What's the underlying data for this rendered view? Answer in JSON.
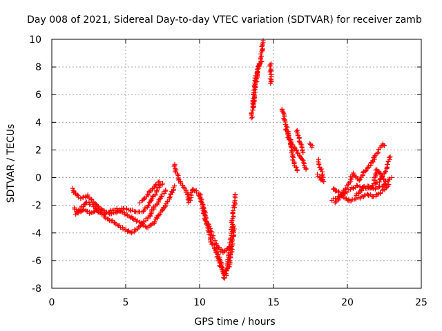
{
  "chart_data": {
    "type": "scatter",
    "title": "Day 008 of 2021, Sidereal Day-to-day VTEC variation (SDTVAR) for receiver zamb",
    "xlabel": "GPS time / hours",
    "ylabel": "SDTVAR / TECUs",
    "xlim": [
      0,
      25
    ],
    "ylim": [
      -8,
      10
    ],
    "xticks": [
      0,
      5,
      10,
      15,
      20,
      25
    ],
    "yticks": [
      -8,
      -6,
      -4,
      -2,
      0,
      2,
      4,
      6,
      8,
      10
    ],
    "grid": true,
    "marker": "+",
    "series": [
      {
        "name": "SDTVAR",
        "color": "#ff0000",
        "segments": [
          [
            [
              1.4,
              -0.8
            ],
            [
              1.6,
              -1.2
            ],
            [
              2.0,
              -1.5
            ],
            [
              2.4,
              -1.3
            ],
            [
              2.8,
              -1.8
            ],
            [
              3.2,
              -2.2
            ],
            [
              3.6,
              -2.5
            ],
            [
              4.0,
              -2.6
            ],
            [
              4.4,
              -2.5
            ],
            [
              4.8,
              -2.2
            ],
            [
              5.2,
              -2.3
            ],
            [
              5.6,
              -2.4
            ],
            [
              6.0,
              -2.5
            ],
            [
              6.4,
              -2.2
            ],
            [
              6.8,
              -1.5
            ],
            [
              7.2,
              -0.8
            ],
            [
              7.5,
              -0.4
            ]
          ],
          [
            [
              1.5,
              -2.2
            ],
            [
              1.8,
              -2.5
            ],
            [
              2.2,
              -2.3
            ],
            [
              2.6,
              -2.6
            ],
            [
              3.0,
              -2.4
            ],
            [
              3.4,
              -2.6
            ],
            [
              3.8,
              -3.0
            ],
            [
              4.2,
              -3.2
            ],
            [
              4.6,
              -3.5
            ],
            [
              5.0,
              -3.8
            ],
            [
              5.4,
              -4.0
            ],
            [
              5.8,
              -3.7
            ],
            [
              6.2,
              -3.2
            ],
            [
              6.6,
              -2.8
            ],
            [
              7.0,
              -2.0
            ],
            [
              7.4,
              -1.4
            ],
            [
              7.7,
              -0.9
            ]
          ],
          [
            [
              1.6,
              -2.6
            ],
            [
              2.0,
              -2.2
            ],
            [
              2.4,
              -1.8
            ],
            [
              2.8,
              -2.0
            ],
            [
              3.2,
              -2.5
            ],
            [
              3.6,
              -2.6
            ],
            [
              4.0,
              -2.4
            ],
            [
              4.4,
              -2.3
            ],
            [
              4.8,
              -2.5
            ],
            [
              5.2,
              -2.8
            ],
            [
              5.6,
              -3.0
            ],
            [
              6.0,
              -3.3
            ],
            [
              6.4,
              -3.6
            ],
            [
              6.8,
              -3.4
            ],
            [
              7.2,
              -2.8
            ],
            [
              7.6,
              -2.2
            ],
            [
              8.0,
              -1.4
            ],
            [
              8.3,
              -0.6
            ]
          ],
          [
            [
              6.0,
              -1.8
            ],
            [
              6.5,
              -1.2
            ],
            [
              7.0,
              -0.6
            ],
            [
              7.3,
              -0.3
            ]
          ],
          [
            [
              8.3,
              1.0
            ],
            [
              8.4,
              0.4
            ],
            [
              8.6,
              -0.2
            ],
            [
              8.8,
              -0.5
            ],
            [
              9.0,
              -0.8
            ],
            [
              9.2,
              -1.2
            ],
            [
              9.3,
              -1.8
            ],
            [
              9.5,
              -0.8
            ],
            [
              9.8,
              -1.0
            ],
            [
              10.0,
              -1.5
            ],
            [
              10.2,
              -2.0
            ],
            [
              10.4,
              -3.0
            ],
            [
              10.6,
              -3.8
            ],
            [
              10.8,
              -4.6
            ],
            [
              11.0,
              -5.0
            ],
            [
              11.2,
              -5.5
            ],
            [
              11.4,
              -6.0
            ],
            [
              11.6,
              -6.8
            ],
            [
              11.7,
              -7.3
            ],
            [
              11.8,
              -7.0
            ],
            [
              12.0,
              -5.5
            ],
            [
              12.2,
              -3.5
            ],
            [
              12.4,
              -1.2
            ]
          ],
          [
            [
              10.0,
              -1.2
            ],
            [
              10.4,
              -2.8
            ],
            [
              10.8,
              -4.0
            ],
            [
              11.2,
              -5.0
            ],
            [
              11.6,
              -5.4
            ],
            [
              12.0,
              -5.0
            ]
          ],
          [
            [
              11.1,
              -5.2
            ],
            [
              11.4,
              -6.4
            ],
            [
              11.7,
              -6.8
            ],
            [
              12.0,
              -6.5
            ],
            [
              12.3,
              -4.0
            ],
            [
              12.3,
              -3.5
            ]
          ],
          [
            [
              13.5,
              4.3
            ],
            [
              13.7,
              6.0
            ],
            [
              13.9,
              7.5
            ],
            [
              14.1,
              8.4
            ],
            [
              14.3,
              9.9
            ]
          ],
          [
            [
              13.6,
              5.0
            ],
            [
              13.8,
              7.2
            ],
            [
              14.0,
              8.0
            ],
            [
              14.2,
              8.4
            ]
          ],
          [
            [
              14.8,
              8.3
            ],
            [
              14.8,
              7.2
            ],
            [
              14.8,
              6.8
            ]
          ],
          [
            [
              15.6,
              5.0
            ],
            [
              15.8,
              4.0
            ],
            [
              16.0,
              3.0
            ],
            [
              16.2,
              2.0
            ],
            [
              16.4,
              1.0
            ],
            [
              16.6,
              0.5
            ]
          ],
          [
            [
              15.8,
              3.5
            ],
            [
              16.2,
              2.6
            ],
            [
              16.6,
              1.8
            ],
            [
              17.0,
              1.2
            ],
            [
              17.2,
              0.6
            ]
          ],
          [
            [
              16.6,
              3.4
            ],
            [
              16.8,
              2.5
            ],
            [
              17.0,
              1.8
            ]
          ],
          [
            [
              17.5,
              2.5
            ],
            [
              17.6,
              2.2
            ]
          ],
          [
            [
              18.0,
              1.3
            ],
            [
              18.2,
              0.6
            ],
            [
              18.3,
              0.2
            ],
            [
              18.4,
              -0.3
            ]
          ],
          [
            [
              18.0,
              0.2
            ],
            [
              18.2,
              -0.1
            ],
            [
              18.3,
              -0.2
            ]
          ],
          [
            [
              19.0,
              -1.6
            ],
            [
              19.4,
              -1.4
            ],
            [
              19.8,
              -1.2
            ],
            [
              20.2,
              -0.8
            ],
            [
              20.6,
              -0.6
            ],
            [
              21.0,
              -0.7
            ],
            [
              21.4,
              -0.8
            ],
            [
              21.8,
              -0.5
            ],
            [
              22.2,
              -0.2
            ],
            [
              22.6,
              0.5
            ],
            [
              22.9,
              1.5
            ]
          ],
          [
            [
              19.0,
              -0.8
            ],
            [
              19.4,
              -1.0
            ],
            [
              19.8,
              -1.5
            ],
            [
              20.2,
              -1.7
            ],
            [
              20.6,
              -1.5
            ],
            [
              21.0,
              -1.4
            ],
            [
              21.4,
              -1.2
            ],
            [
              21.8,
              -1.4
            ],
            [
              22.2,
              -1.1
            ],
            [
              22.6,
              -0.8
            ],
            [
              22.8,
              -0.5
            ]
          ],
          [
            [
              19.2,
              -1.8
            ],
            [
              19.6,
              -1.3
            ],
            [
              20.0,
              -0.6
            ],
            [
              20.4,
              0.3
            ],
            [
              20.8,
              -0.2
            ],
            [
              21.2,
              0.5
            ],
            [
              21.6,
              1.0
            ],
            [
              22.0,
              1.8
            ],
            [
              22.4,
              2.4
            ],
            [
              22.5,
              2.3
            ]
          ],
          [
            [
              20.6,
              -1.3
            ],
            [
              21.2,
              -0.6
            ],
            [
              21.8,
              -0.8
            ],
            [
              22.4,
              -0.6
            ],
            [
              23.0,
              0.0
            ]
          ],
          [
            [
              21.8,
              -0.2
            ],
            [
              22.0,
              0.6
            ],
            [
              22.2,
              0.3
            ],
            [
              22.6,
              -0.3
            ]
          ]
        ]
      }
    ]
  }
}
